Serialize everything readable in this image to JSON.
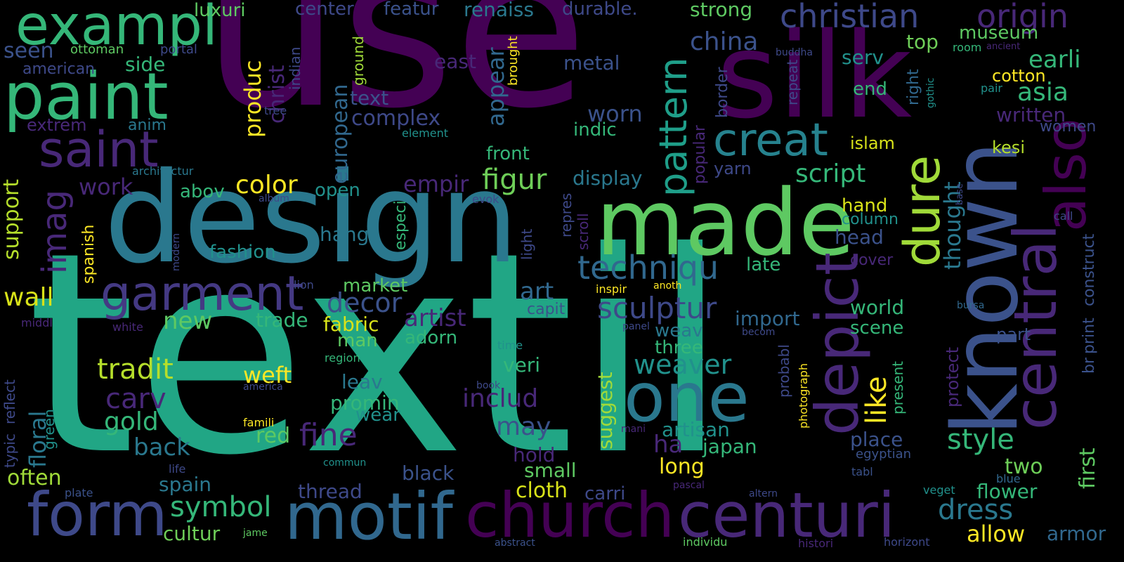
{
  "background": "#000000",
  "palette": [
    "#440154",
    "#3b528b",
    "#21918c",
    "#5ec962",
    "#fde725"
  ],
  "words": [
    {
      "text": "textil",
      "color": "#21a685"
    },
    {
      "text": "use",
      "color": "#440154"
    },
    {
      "text": "design",
      "color": "#2a788e"
    },
    {
      "text": "silk",
      "color": "#440154"
    },
    {
      "text": "known",
      "color": "#3b528b"
    },
    {
      "text": "made",
      "color": "#5ec962"
    },
    {
      "text": "paint",
      "color": "#35b779"
    },
    {
      "text": "exampl",
      "color": "#35b779"
    },
    {
      "text": "saint",
      "color": "#482878"
    },
    {
      "text": "garment",
      "color": "#443983"
    },
    {
      "text": "motif",
      "color": "#31688e"
    },
    {
      "text": "church",
      "color": "#440154"
    },
    {
      "text": "centuri",
      "color": "#482878"
    },
    {
      "text": "form",
      "color": "#3e4989"
    },
    {
      "text": "one",
      "color": "#2a788e"
    },
    {
      "text": "central",
      "color": "#482878"
    },
    {
      "text": "also",
      "color": "#440154"
    },
    {
      "text": "depict",
      "color": "#482878"
    },
    {
      "text": "dure",
      "color": "#a0da39"
    },
    {
      "text": "creat",
      "color": "#26828e"
    },
    {
      "text": "pattern",
      "color": "#1f9e89"
    },
    {
      "text": "christian",
      "color": "#3e4989"
    },
    {
      "text": "origin",
      "color": "#482878"
    },
    {
      "text": "imag",
      "color": "#482878"
    },
    {
      "text": "techniqu",
      "color": "#31688e"
    },
    {
      "text": "sculptur",
      "color": "#3e4989"
    },
    {
      "text": "weaver",
      "color": "#21918c"
    },
    {
      "text": "tradit",
      "color": "#b5de2b"
    },
    {
      "text": "fine",
      "color": "#482878"
    },
    {
      "text": "symbol",
      "color": "#35b779"
    },
    {
      "text": "dress",
      "color": "#2a788e"
    },
    {
      "text": "style",
      "color": "#35b779"
    },
    {
      "text": "decor",
      "color": "#3b528b"
    },
    {
      "text": "artist",
      "color": "#482878"
    },
    {
      "text": "figur",
      "color": "#6ece58"
    },
    {
      "text": "color",
      "color": "#fde725"
    },
    {
      "text": "china",
      "color": "#3b528b"
    },
    {
      "text": "script",
      "color": "#35b779"
    },
    {
      "text": "carv",
      "color": "#482878"
    },
    {
      "text": "gold",
      "color": "#35b779"
    },
    {
      "text": "back",
      "color": "#2a788e"
    },
    {
      "text": "includ",
      "color": "#482878"
    },
    {
      "text": "may",
      "color": "#3b528b"
    },
    {
      "text": "like",
      "color": "#fde725"
    },
    {
      "text": "asia",
      "color": "#35b779"
    },
    {
      "text": "earli",
      "color": "#35b779"
    },
    {
      "text": "worn",
      "color": "#3b528b"
    },
    {
      "text": "work",
      "color": "#482878"
    },
    {
      "text": "wall",
      "color": "#d8e219"
    },
    {
      "text": "new",
      "color": "#5ec962"
    },
    {
      "text": "floral",
      "color": "#2a788e"
    },
    {
      "text": "support",
      "color": "#b5de2b"
    },
    {
      "text": "seen",
      "color": "#3b528b"
    },
    {
      "text": "european",
      "color": "#31688e"
    },
    {
      "text": "complex",
      "color": "#3e4989"
    },
    {
      "text": "produc",
      "color": "#fde725"
    },
    {
      "text": "christ",
      "color": "#482878"
    },
    {
      "text": "appear",
      "color": "#31688e"
    },
    {
      "text": "empir",
      "color": "#482878"
    },
    {
      "text": "art",
      "color": "#31688e"
    },
    {
      "text": "fabric",
      "color": "#d8e219"
    },
    {
      "text": "trade",
      "color": "#35b779"
    },
    {
      "text": "weft",
      "color": "#fde725"
    },
    {
      "text": "thought",
      "color": "#2a788e"
    },
    {
      "text": "museum",
      "color": "#5ec962"
    },
    {
      "text": "written",
      "color": "#482878"
    },
    {
      "text": "women",
      "color": "#3e4989"
    },
    {
      "text": "kesi",
      "color": "#b5de2b"
    },
    {
      "text": "islam",
      "color": "#d8e219"
    },
    {
      "text": "cotton",
      "color": "#fde725"
    },
    {
      "text": "world",
      "color": "#35b779"
    },
    {
      "text": "scene",
      "color": "#35b779"
    },
    {
      "text": "import",
      "color": "#31688e"
    },
    {
      "text": "weav",
      "color": "#2a788e"
    },
    {
      "text": "three",
      "color": "#35b779"
    },
    {
      "text": "place",
      "color": "#3b528b"
    },
    {
      "text": "japan",
      "color": "#35b779"
    },
    {
      "text": "artisan",
      "color": "#21918c"
    },
    {
      "text": "two",
      "color": "#6ece58"
    },
    {
      "text": "first",
      "color": "#5ec962"
    },
    {
      "text": "flower",
      "color": "#35b779"
    },
    {
      "text": "allow",
      "color": "#fde725"
    },
    {
      "text": "armor",
      "color": "#31688e"
    },
    {
      "text": "cloth",
      "color": "#d8e219"
    },
    {
      "text": "carri",
      "color": "#3e4989"
    },
    {
      "text": "black",
      "color": "#3b528b"
    },
    {
      "text": "small",
      "color": "#5ec962"
    },
    {
      "text": "long",
      "color": "#fde725"
    },
    {
      "text": "thread",
      "color": "#3e4989"
    },
    {
      "text": "spain",
      "color": "#2a788e"
    },
    {
      "text": "cultur",
      "color": "#6ece58"
    },
    {
      "text": "often",
      "color": "#a0da39"
    },
    {
      "text": "red",
      "color": "#5ec962"
    },
    {
      "text": "wear",
      "color": "#21918c"
    },
    {
      "text": "promin",
      "color": "#35b779"
    },
    {
      "text": "leav",
      "color": "#2a788e"
    },
    {
      "text": "veri",
      "color": "#35b779"
    },
    {
      "text": "adorn",
      "color": "#35b779"
    },
    {
      "text": "man",
      "color": "#5ec962"
    },
    {
      "text": "market",
      "color": "#5ec962"
    },
    {
      "text": "hang",
      "color": "#2a788e"
    },
    {
      "text": "fashion",
      "color": "#21918c"
    },
    {
      "text": "abov",
      "color": "#35b779"
    },
    {
      "text": "open",
      "color": "#21918c"
    },
    {
      "text": "display",
      "color": "#2a788e"
    },
    {
      "text": "front",
      "color": "#35b779"
    },
    {
      "text": "indic",
      "color": "#35b779"
    },
    {
      "text": "metal",
      "color": "#3b528b"
    },
    {
      "text": "serv",
      "color": "#21918c"
    },
    {
      "text": "end",
      "color": "#35b779"
    },
    {
      "text": "top",
      "color": "#6ece58"
    },
    {
      "text": "strong",
      "color": "#5ec962"
    },
    {
      "text": "luxuri",
      "color": "#5ec962"
    },
    {
      "text": "center",
      "color": "#3e4989"
    },
    {
      "text": "featur",
      "color": "#3b528b"
    },
    {
      "text": "renaiss",
      "color": "#2a788e"
    },
    {
      "text": "durable.",
      "color": "#3e4989"
    },
    {
      "text": "ottoman",
      "color": "#5ec962"
    },
    {
      "text": "american",
      "color": "#3e4989"
    },
    {
      "text": "side",
      "color": "#35b779"
    },
    {
      "text": "extrem",
      "color": "#482878"
    },
    {
      "text": "anim",
      "color": "#2a788e"
    },
    {
      "text": "text",
      "color": "#3b528b"
    },
    {
      "text": "element",
      "color": "#21918c"
    },
    {
      "text": "tree",
      "color": "#3e4989"
    },
    {
      "text": "portal",
      "color": "#3e4989"
    },
    {
      "text": "east",
      "color": "#482878"
    },
    {
      "text": "indian",
      "color": "#3e4989"
    },
    {
      "text": "ground",
      "color": "#a0da39"
    },
    {
      "text": "brought",
      "color": "#fde725"
    },
    {
      "text": "architectur",
      "color": "#2a788e"
    },
    {
      "text": "spanish",
      "color": "#fde725"
    },
    {
      "text": "especi",
      "color": "#35b779"
    },
    {
      "text": "head",
      "color": "#3b528b"
    },
    {
      "text": "hand",
      "color": "#d8e219"
    },
    {
      "text": "column",
      "color": "#21918c"
    },
    {
      "text": "late",
      "color": "#35b779"
    },
    {
      "text": "cover",
      "color": "#482878"
    },
    {
      "text": "yarn",
      "color": "#3e4989"
    },
    {
      "text": "popular",
      "color": "#482878"
    },
    {
      "text": "border",
      "color": "#3e4989"
    },
    {
      "text": "repeat",
      "color": "#3e4989"
    },
    {
      "text": "right",
      "color": "#31688e"
    },
    {
      "text": "gothic",
      "color": "#21918c"
    },
    {
      "text": "pair",
      "color": "#21918c"
    },
    {
      "text": "room",
      "color": "#35b779"
    },
    {
      "text": "ancient",
      "color": "#482878"
    },
    {
      "text": "buddha",
      "color": "#3e4989"
    },
    {
      "text": "album",
      "color": "#3e4989"
    },
    {
      "text": "evok",
      "color": "#3e4989"
    },
    {
      "text": "base",
      "color": "#3e4989"
    },
    {
      "text": "call",
      "color": "#3e4989"
    },
    {
      "text": "construct",
      "color": "#3b528b"
    },
    {
      "text": "print",
      "color": "#3b528b"
    },
    {
      "text": "br",
      "color": "#3b528b"
    },
    {
      "text": "bursa",
      "color": "#31688e"
    },
    {
      "text": "repres",
      "color": "#3e4989"
    },
    {
      "text": "scroll",
      "color": "#482878"
    },
    {
      "text": "light",
      "color": "#3e4989"
    },
    {
      "text": "modern",
      "color": "#3e4989"
    },
    {
      "text": "capit",
      "color": "#3b528b"
    },
    {
      "text": "inspir",
      "color": "#fde725"
    },
    {
      "text": "anoth",
      "color": "#fde725"
    },
    {
      "text": "lion",
      "color": "#3e4989"
    },
    {
      "text": "white",
      "color": "#482878"
    },
    {
      "text": "middl",
      "color": "#482878"
    },
    {
      "text": "typic",
      "color": "#3e4989"
    },
    {
      "text": "reflect",
      "color": "#3e4989"
    },
    {
      "text": "green",
      "color": "#21918c"
    },
    {
      "text": "ha",
      "color": "#482878"
    },
    {
      "text": "hold",
      "color": "#482878"
    },
    {
      "text": "region",
      "color": "#35b779"
    },
    {
      "text": "time",
      "color": "#21918c"
    },
    {
      "text": "america",
      "color": "#3e4989"
    },
    {
      "text": "famili",
      "color": "#fde725"
    },
    {
      "text": "book",
      "color": "#3e4989"
    },
    {
      "text": "commun",
      "color": "#21918c"
    },
    {
      "text": "life",
      "color": "#3e4989"
    },
    {
      "text": "plate",
      "color": "#3b528b"
    },
    {
      "text": "jame",
      "color": "#5ec962"
    },
    {
      "text": "abstract",
      "color": "#3b528b"
    },
    {
      "text": "individu",
      "color": "#5ec962"
    },
    {
      "text": "histori",
      "color": "#482878"
    },
    {
      "text": "horizont",
      "color": "#3e4989"
    },
    {
      "text": "altern",
      "color": "#3e4989"
    },
    {
      "text": "pascal",
      "color": "#482878"
    },
    {
      "text": "mani",
      "color": "#482878"
    },
    {
      "text": "suggest",
      "color": "#a0da39"
    },
    {
      "text": "probabl",
      "color": "#3e4989"
    },
    {
      "text": "photograph",
      "color": "#fde725"
    },
    {
      "text": "present",
      "color": "#35b779"
    },
    {
      "text": "protect",
      "color": "#482878"
    },
    {
      "text": "part",
      "color": "#3b528b"
    },
    {
      "text": "egyptian",
      "color": "#3b528b"
    },
    {
      "text": "tabl",
      "color": "#3b528b"
    },
    {
      "text": "veget",
      "color": "#21918c"
    },
    {
      "text": "blue",
      "color": "#31688e"
    },
    {
      "text": "panel",
      "color": "#3e4989"
    },
    {
      "text": "becom",
      "color": "#3e4989"
    }
  ]
}
